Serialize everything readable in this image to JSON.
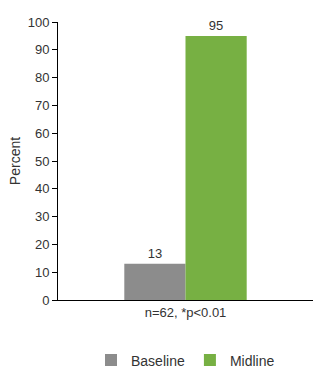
{
  "chart_data": {
    "type": "bar",
    "y_label": "Percent",
    "categories": [
      "n=62, *p<0.01"
    ],
    "series": [
      {
        "name": "Baseline",
        "color": "#8c8c8c",
        "values": [
          13
        ]
      },
      {
        "name": "Midline",
        "color": "#77b043",
        "values": [
          95
        ]
      }
    ],
    "ylim": [
      0,
      100
    ],
    "yticks": [
      0,
      10,
      20,
      30,
      40,
      50,
      60,
      70,
      80,
      90,
      100
    ],
    "grid": false,
    "data_labels": true,
    "legend": "bottom"
  }
}
